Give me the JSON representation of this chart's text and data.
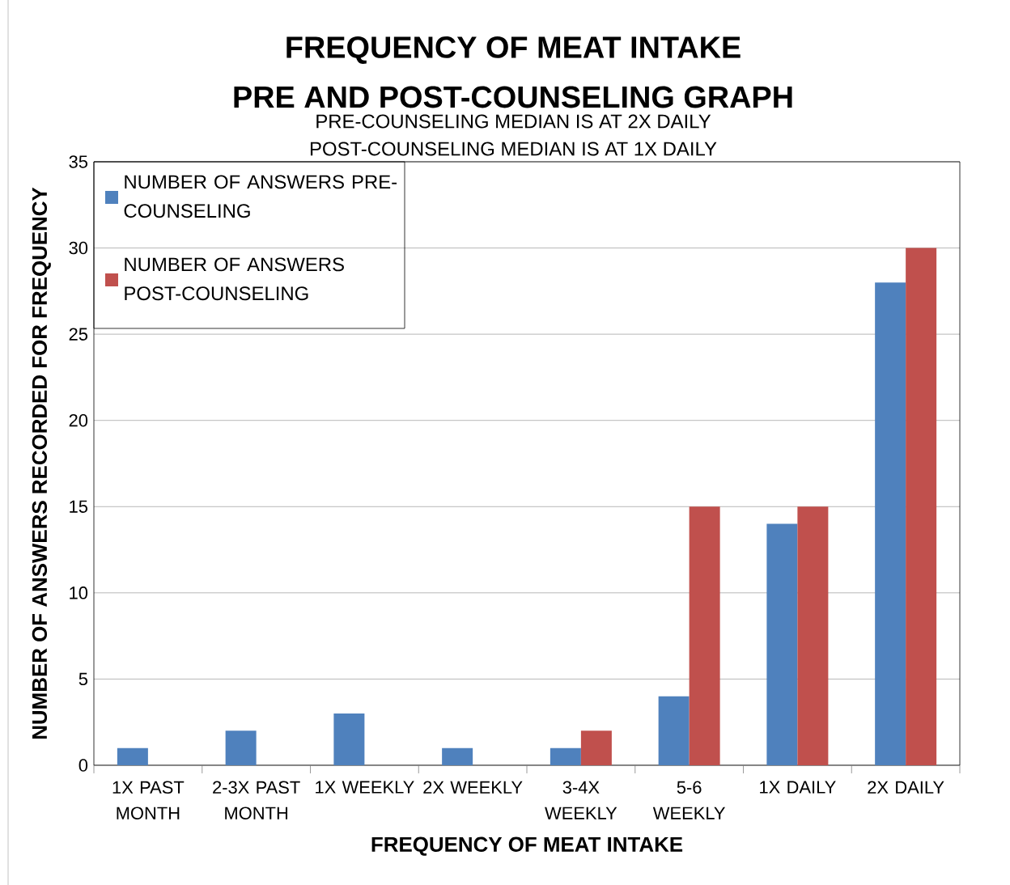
{
  "chart_data": {
    "type": "bar",
    "title": "FREQUENCY OF MEAT INTAKE",
    "subtitle": "PRE AND POST-COUNSELING GRAPH",
    "annotations": [
      "PRE-COUNSELING MEDIAN IS AT 2X DAILY",
      "POST-COUNSELING MEDIAN IS AT 1X DAILY"
    ],
    "xlabel": "FREQUENCY OF MEAT INTAKE",
    "ylabel": "NUMBER OF ANSWERS RECORDED FOR FREQUENCY",
    "categories": [
      "1X PAST MONTH",
      "2-3X PAST MONTH",
      "1X WEEKLY",
      "2X WEEKLY",
      "3-4X WEEKLY",
      "5-6 WEEKLY",
      "1X DAILY",
      "2X DAILY"
    ],
    "series": [
      {
        "name": "NUMBER OF ANSWERS PRE-COUNSELING",
        "color": "#4f81bd",
        "values": [
          1,
          2,
          3,
          1,
          1,
          4,
          14,
          28
        ]
      },
      {
        "name": "NUMBER OF ANSWERS POST-COUNSELING",
        "color": "#c0504d",
        "values": [
          0,
          0,
          0,
          0,
          2,
          15,
          15,
          30
        ]
      }
    ],
    "ylim": [
      0,
      35
    ],
    "yticks": [
      0,
      5,
      10,
      15,
      20,
      25,
      30,
      35
    ],
    "grid": "y",
    "legend": "top left"
  }
}
